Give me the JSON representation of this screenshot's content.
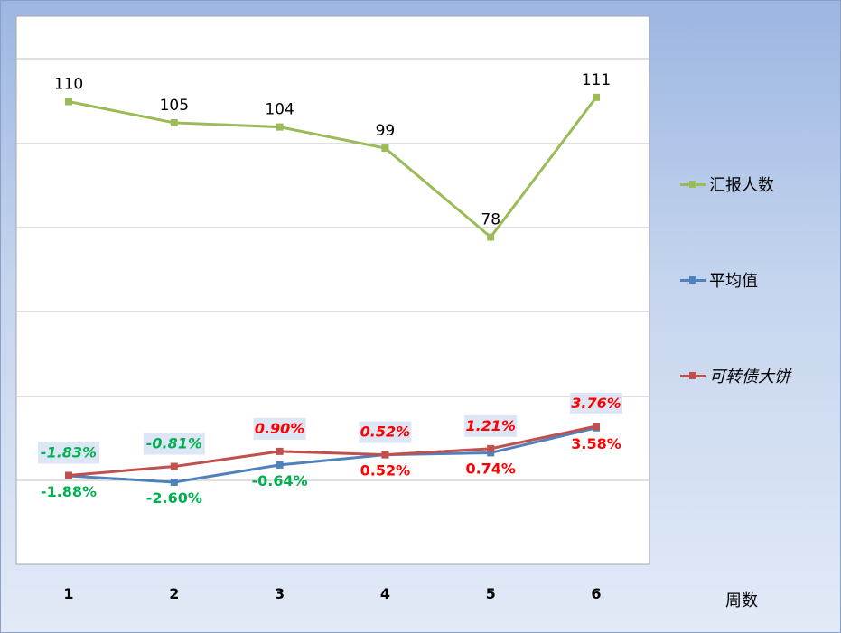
{
  "chart_data": {
    "type": "line",
    "categories": [
      "1",
      "2",
      "3",
      "4",
      "5",
      "6"
    ],
    "xlabel": "周数",
    "grid": true,
    "legend_position": "right",
    "series": [
      {
        "name": "汇报人数",
        "axis": "left",
        "color": "#9bbb59",
        "values": [
          110,
          105,
          104,
          99,
          78,
          111
        ],
        "labels": [
          "110",
          "105",
          "104",
          "99",
          "78",
          "111"
        ],
        "label_position": "above",
        "label_colors": [
          "#000000",
          "#000000",
          "#000000",
          "#000000",
          "#000000",
          "#000000"
        ],
        "label_italic": false,
        "label_bold": false,
        "label_background": false
      },
      {
        "name": "平均值",
        "axis": "right",
        "color": "#4f81bd",
        "values": [
          -1.88,
          -2.6,
          -0.64,
          0.52,
          0.74,
          3.58
        ],
        "labels": [
          "-1.88%",
          "-2.60%",
          "-0.64%",
          "0.52%",
          "0.74%",
          "3.58%"
        ],
        "label_position": "below",
        "label_colors": [
          "#00b050",
          "#00b050",
          "#00b050",
          "#ff0000",
          "#ff0000",
          "#ff0000"
        ],
        "label_italic": false,
        "label_bold": true,
        "label_background": false
      },
      {
        "name": "可转债大饼",
        "axis": "right",
        "color": "#c0504d",
        "values": [
          -1.83,
          -0.81,
          0.9,
          0.52,
          1.21,
          3.76
        ],
        "labels": [
          "-1.83%",
          "-0.81%",
          "0.90%",
          "0.52%",
          "1.21%",
          "3.76%"
        ],
        "label_position": "above",
        "label_colors": [
          "#00b050",
          "#00b050",
          "#ff0000",
          "#ff0000",
          "#ff0000",
          "#ff0000"
        ],
        "label_italic": true,
        "label_bold": true,
        "label_background": true
      }
    ]
  },
  "colors": {
    "label_bg": "#dde6f4",
    "plot_bg": "#ffffff",
    "gridline": "#bfbfbf"
  }
}
